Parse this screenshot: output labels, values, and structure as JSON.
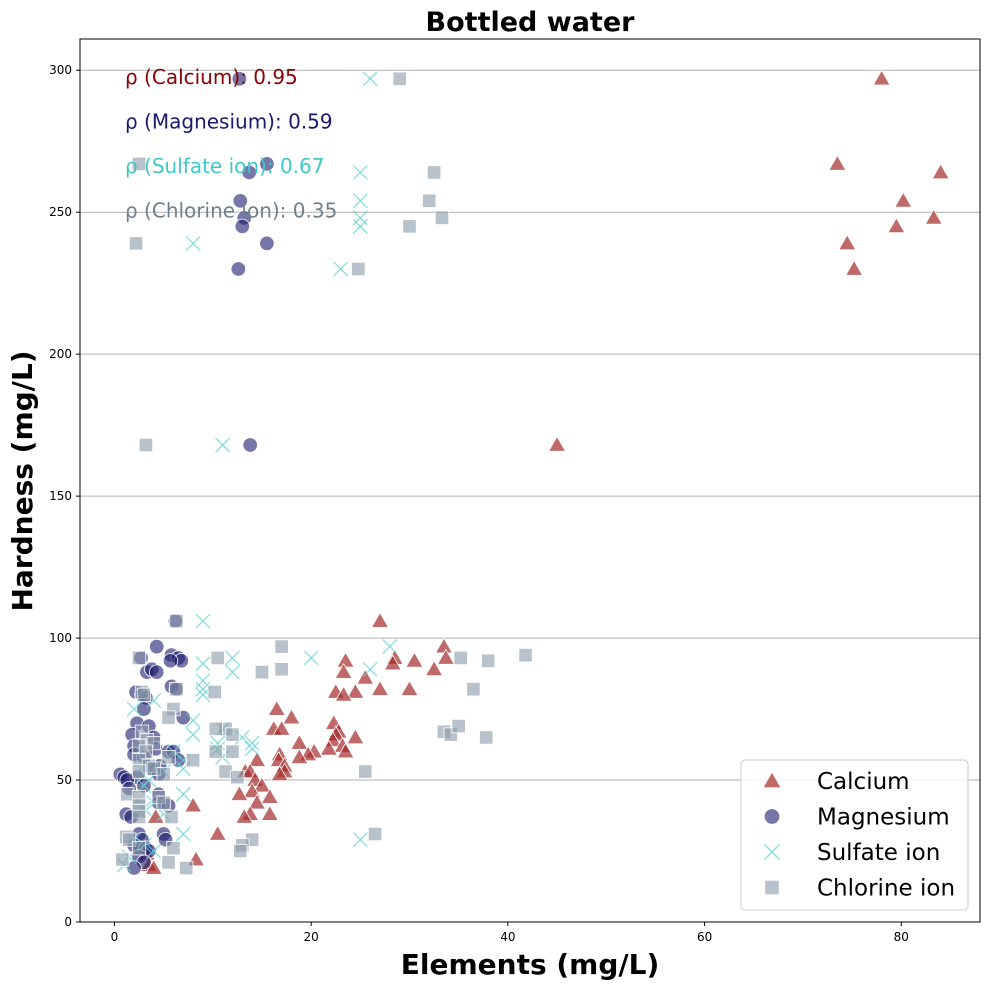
{
  "chart_data": {
    "type": "scatter",
    "title": "Bottled water",
    "xlabel": "Elements (mg/L)",
    "ylabel": "Hardness (mg/L)",
    "xlim": [
      -3.5,
      88
    ],
    "ylim": [
      0,
      311
    ],
    "xticks": [
      0,
      20,
      40,
      60,
      80
    ],
    "yticks": [
      0,
      50,
      100,
      150,
      200,
      250,
      300
    ],
    "grid": "horizontal",
    "legend_position": "bottom-right",
    "annotations": [
      {
        "text": "ρ (Calcium): 0.95",
        "color": "#8b0000"
      },
      {
        "text": "ρ (Magnesium): 0.59",
        "color": "#191970"
      },
      {
        "text": "ρ (Sulfate ion): 0.67",
        "color": "#40c8c8"
      },
      {
        "text": "ρ (Chlorine ion): 0.35",
        "color": "#708090"
      }
    ],
    "series": [
      {
        "name": "Calcium",
        "marker": "triangle",
        "color": "#a52a2a",
        "points": [
          [
            78,
            297
          ],
          [
            73.5,
            267
          ],
          [
            84,
            264
          ],
          [
            80.2,
            254
          ],
          [
            83.3,
            248
          ],
          [
            79.5,
            245
          ],
          [
            74.5,
            239
          ],
          [
            75.2,
            230
          ],
          [
            45,
            168
          ],
          [
            27,
            106
          ],
          [
            33.5,
            97
          ],
          [
            28.5,
            93
          ],
          [
            33.7,
            93
          ],
          [
            23.5,
            92
          ],
          [
            30.5,
            92
          ],
          [
            28.3,
            91
          ],
          [
            32.5,
            89
          ],
          [
            23.3,
            88
          ],
          [
            25.5,
            86
          ],
          [
            27,
            82
          ],
          [
            30,
            82
          ],
          [
            22.5,
            81
          ],
          [
            24.5,
            81
          ],
          [
            23.3,
            80
          ],
          [
            16.5,
            75
          ],
          [
            18,
            72
          ],
          [
            22.3,
            70
          ],
          [
            16.2,
            68
          ],
          [
            17,
            68
          ],
          [
            22.8,
            67
          ],
          [
            22.5,
            66
          ],
          [
            24.5,
            65
          ],
          [
            22.2,
            64
          ],
          [
            18.8,
            63
          ],
          [
            23.2,
            62
          ],
          [
            21.8,
            61
          ],
          [
            20.3,
            60
          ],
          [
            23.5,
            60
          ],
          [
            16.8,
            59
          ],
          [
            19.7,
            59
          ],
          [
            18.8,
            58
          ],
          [
            14.5,
            57
          ],
          [
            16.7,
            57
          ],
          [
            17.3,
            55
          ],
          [
            17.3,
            53
          ],
          [
            16.8,
            52
          ],
          [
            13.3,
            53
          ],
          [
            13.8,
            53
          ],
          [
            14.3,
            50
          ],
          [
            15,
            48
          ],
          [
            14,
            46
          ],
          [
            12.7,
            45
          ],
          [
            15.8,
            44
          ],
          [
            14.5,
            42
          ],
          [
            8,
            41
          ],
          [
            13.8,
            38
          ],
          [
            15.8,
            38
          ],
          [
            13.2,
            37
          ],
          [
            10.5,
            31
          ],
          [
            4.2,
            37
          ],
          [
            3.3,
            24
          ],
          [
            8.3,
            22
          ],
          [
            3.5,
            20
          ],
          [
            4,
            19
          ]
        ]
      },
      {
        "name": "Magnesium",
        "marker": "circle",
        "color": "#1a1a6e",
        "points": [
          [
            12.7,
            297
          ],
          [
            15.5,
            267
          ],
          [
            13.7,
            264
          ],
          [
            12.8,
            254
          ],
          [
            13.2,
            248
          ],
          [
            13,
            245
          ],
          [
            15.5,
            239
          ],
          [
            12.6,
            230
          ],
          [
            13.8,
            168
          ],
          [
            6.2,
            106
          ],
          [
            4.3,
            97
          ],
          [
            5.8,
            94
          ],
          [
            2.7,
            93
          ],
          [
            6.5,
            93
          ],
          [
            6.8,
            92
          ],
          [
            5.7,
            92
          ],
          [
            3.3,
            88
          ],
          [
            3.8,
            89
          ],
          [
            4.3,
            88
          ],
          [
            5.8,
            83
          ],
          [
            6.3,
            82
          ],
          [
            2.2,
            81
          ],
          [
            2.8,
            80
          ],
          [
            3.2,
            79
          ],
          [
            3,
            75
          ],
          [
            7,
            72
          ],
          [
            2.3,
            70
          ],
          [
            3.5,
            69
          ],
          [
            1.8,
            66
          ],
          [
            4,
            65
          ],
          [
            2,
            62
          ],
          [
            4.2,
            61
          ],
          [
            5.5,
            60
          ],
          [
            6,
            60
          ],
          [
            2,
            59
          ],
          [
            3,
            58
          ],
          [
            6.5,
            57
          ],
          [
            4.6,
            55
          ],
          [
            3.8,
            54
          ],
          [
            4.5,
            52
          ],
          [
            0.6,
            52
          ],
          [
            1,
            51
          ],
          [
            2.3,
            51
          ],
          [
            1.3,
            50
          ],
          [
            3,
            48
          ],
          [
            1.5,
            47
          ],
          [
            4.5,
            45
          ],
          [
            4.5,
            42
          ],
          [
            5.5,
            41
          ],
          [
            1.2,
            38
          ],
          [
            1.7,
            37
          ],
          [
            2.5,
            31
          ],
          [
            5,
            31
          ],
          [
            5.2,
            29
          ],
          [
            2.8,
            29
          ],
          [
            2,
            27
          ],
          [
            2.6,
            26
          ],
          [
            3.2,
            26
          ],
          [
            3.5,
            25
          ],
          [
            2.5,
            23
          ],
          [
            3,
            21
          ],
          [
            2,
            19
          ]
        ]
      },
      {
        "name": "Sulfate ion",
        "marker": "x",
        "color": "#5fd3d3",
        "points": [
          [
            26,
            297
          ],
          [
            25,
            264
          ],
          [
            25,
            254
          ],
          [
            25,
            248
          ],
          [
            25,
            245
          ],
          [
            8,
            239
          ],
          [
            23,
            230
          ],
          [
            11,
            168
          ],
          [
            9,
            106
          ],
          [
            28,
            97
          ],
          [
            20,
            93
          ],
          [
            12,
            93
          ],
          [
            9,
            91
          ],
          [
            26,
            89
          ],
          [
            12,
            88
          ],
          [
            9,
            85
          ],
          [
            9,
            82
          ],
          [
            9,
            80
          ],
          [
            4,
            78
          ],
          [
            2,
            75
          ],
          [
            8,
            71
          ],
          [
            11,
            68
          ],
          [
            8,
            66
          ],
          [
            13,
            65
          ],
          [
            10.5,
            63
          ],
          [
            14,
            63
          ],
          [
            14,
            61
          ],
          [
            10.5,
            61
          ],
          [
            6,
            60
          ],
          [
            11,
            58
          ],
          [
            7,
            57
          ],
          [
            3,
            55
          ],
          [
            7,
            54
          ],
          [
            5,
            53
          ],
          [
            3.5,
            50
          ],
          [
            3,
            48
          ],
          [
            7,
            45
          ],
          [
            4,
            42
          ],
          [
            3,
            40
          ],
          [
            5,
            38
          ],
          [
            7,
            31
          ],
          [
            25,
            29
          ],
          [
            2,
            29
          ],
          [
            3,
            27
          ],
          [
            4,
            25
          ],
          [
            1.5,
            23
          ],
          [
            1,
            20
          ]
        ]
      },
      {
        "name": "Chlorine ion",
        "marker": "square",
        "color": "#8899aa",
        "points": [
          [
            29,
            297
          ],
          [
            2.5,
            267
          ],
          [
            32.5,
            264
          ],
          [
            32,
            254
          ],
          [
            33.3,
            248
          ],
          [
            30,
            245
          ],
          [
            2.2,
            239
          ],
          [
            24.8,
            230
          ],
          [
            3.2,
            168
          ],
          [
            6.3,
            106
          ],
          [
            17,
            97
          ],
          [
            41.8,
            94
          ],
          [
            35.2,
            93
          ],
          [
            2.5,
            93
          ],
          [
            10.5,
            93
          ],
          [
            38,
            92
          ],
          [
            17,
            89
          ],
          [
            15,
            88
          ],
          [
            36.5,
            82
          ],
          [
            10.2,
            81
          ],
          [
            6.3,
            82
          ],
          [
            2.8,
            81
          ],
          [
            3,
            80
          ],
          [
            6,
            75
          ],
          [
            5.5,
            72
          ],
          [
            11.3,
            68
          ],
          [
            10.3,
            68
          ],
          [
            12,
            66
          ],
          [
            33.5,
            67
          ],
          [
            34.2,
            66
          ],
          [
            35,
            69
          ],
          [
            37.8,
            65
          ],
          [
            2.8,
            67
          ],
          [
            3.3,
            64
          ],
          [
            4,
            63
          ],
          [
            2.5,
            62
          ],
          [
            3.2,
            60
          ],
          [
            12,
            60
          ],
          [
            10.3,
            60
          ],
          [
            5.5,
            58
          ],
          [
            8,
            57
          ],
          [
            2.5,
            57
          ],
          [
            3.5,
            55
          ],
          [
            4,
            54
          ],
          [
            2.5,
            53
          ],
          [
            11.3,
            53
          ],
          [
            25.5,
            53
          ],
          [
            5,
            52
          ],
          [
            12.5,
            51
          ],
          [
            1.3,
            45
          ],
          [
            2.5,
            44
          ],
          [
            4.5,
            44
          ],
          [
            2.5,
            41
          ],
          [
            5,
            42
          ],
          [
            2.5,
            39
          ],
          [
            2.5,
            37
          ],
          [
            5.8,
            37
          ],
          [
            26.5,
            31
          ],
          [
            1.2,
            30
          ],
          [
            1.5,
            29
          ],
          [
            14,
            29
          ],
          [
            13,
            27
          ],
          [
            12.8,
            25
          ],
          [
            6,
            26
          ],
          [
            2.5,
            26
          ],
          [
            5.5,
            21
          ],
          [
            7.3,
            19
          ],
          [
            0.8,
            22
          ]
        ]
      }
    ]
  }
}
